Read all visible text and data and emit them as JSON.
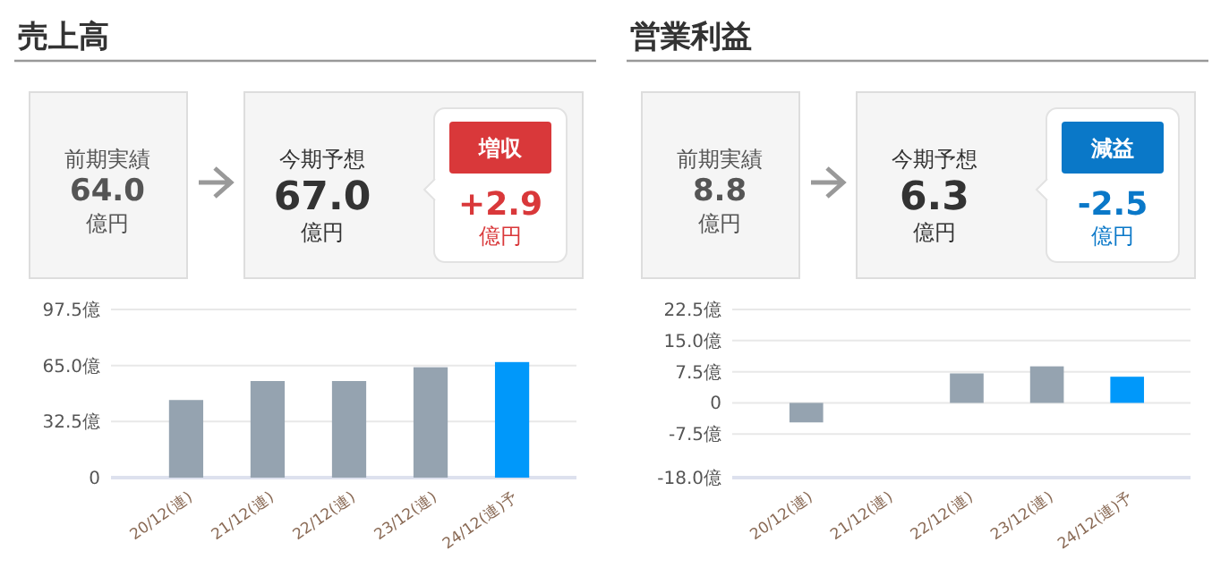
{
  "chart_data": [
    {
      "type": "other",
      "title": "売上高",
      "color": "#d9383a",
      "annotations": [
        "前期実績",
        "64.0",
        "億円",
        "今期予想",
        "67.0",
        "億円",
        "増収",
        "+2.9",
        "億円"
      ]
    },
    {
      "type": "bar",
      "categories": [
        "20/12(連)",
        "21/12(連)",
        "22/12(連)",
        "23/12(連)",
        "24/12(連)予"
      ],
      "values": [
        45,
        56,
        56,
        64.0,
        67.0
      ],
      "colors": [
        "#95a3b0",
        "#95a3b0",
        "#95a3b0",
        "#95a3b0",
        "#0098fa"
      ],
      "ylim": [
        0,
        97.5
      ],
      "yticks": [
        0,
        {
          "value": 32.5,
          "label": "32.5億"
        },
        {
          "value": 65,
          "label": "65.0億"
        },
        {
          "value": 97.5,
          "label": "97.5億"
        }
      ],
      "grid": "y"
    },
    {
      "type": "other",
      "title": "営業利益",
      "color": "#0a78c8",
      "annotations": [
        "前期実績",
        "8.8",
        "億円",
        "今期予想",
        "6.3",
        "億円",
        "減益",
        "-2.5",
        "億円"
      ]
    },
    {
      "type": "bar",
      "categories": [
        "20/12(連)",
        "21/12(連)",
        "22/12(連)",
        "23/12(連)",
        "24/12(連)予"
      ],
      "values": [
        -4.7,
        null,
        7.1,
        8.8,
        6.3
      ],
      "colors": [
        "#95a3b0",
        "#95a3b0",
        "#95a3b0",
        "#95a3b0",
        "#0098fa"
      ],
      "ylim": [
        -18,
        22.5
      ],
      "yticks": [
        {
          "value": -18,
          "label": "-18.0億"
        },
        {
          "value": -7.5,
          "label": "-7.5億"
        },
        0,
        {
          "value": 7.5,
          "label": "7.5億"
        },
        {
          "value": 15,
          "label": "15.0億"
        },
        {
          "value": 22.5,
          "label": "22.5億"
        }
      ],
      "grid": "y"
    }
  ]
}
